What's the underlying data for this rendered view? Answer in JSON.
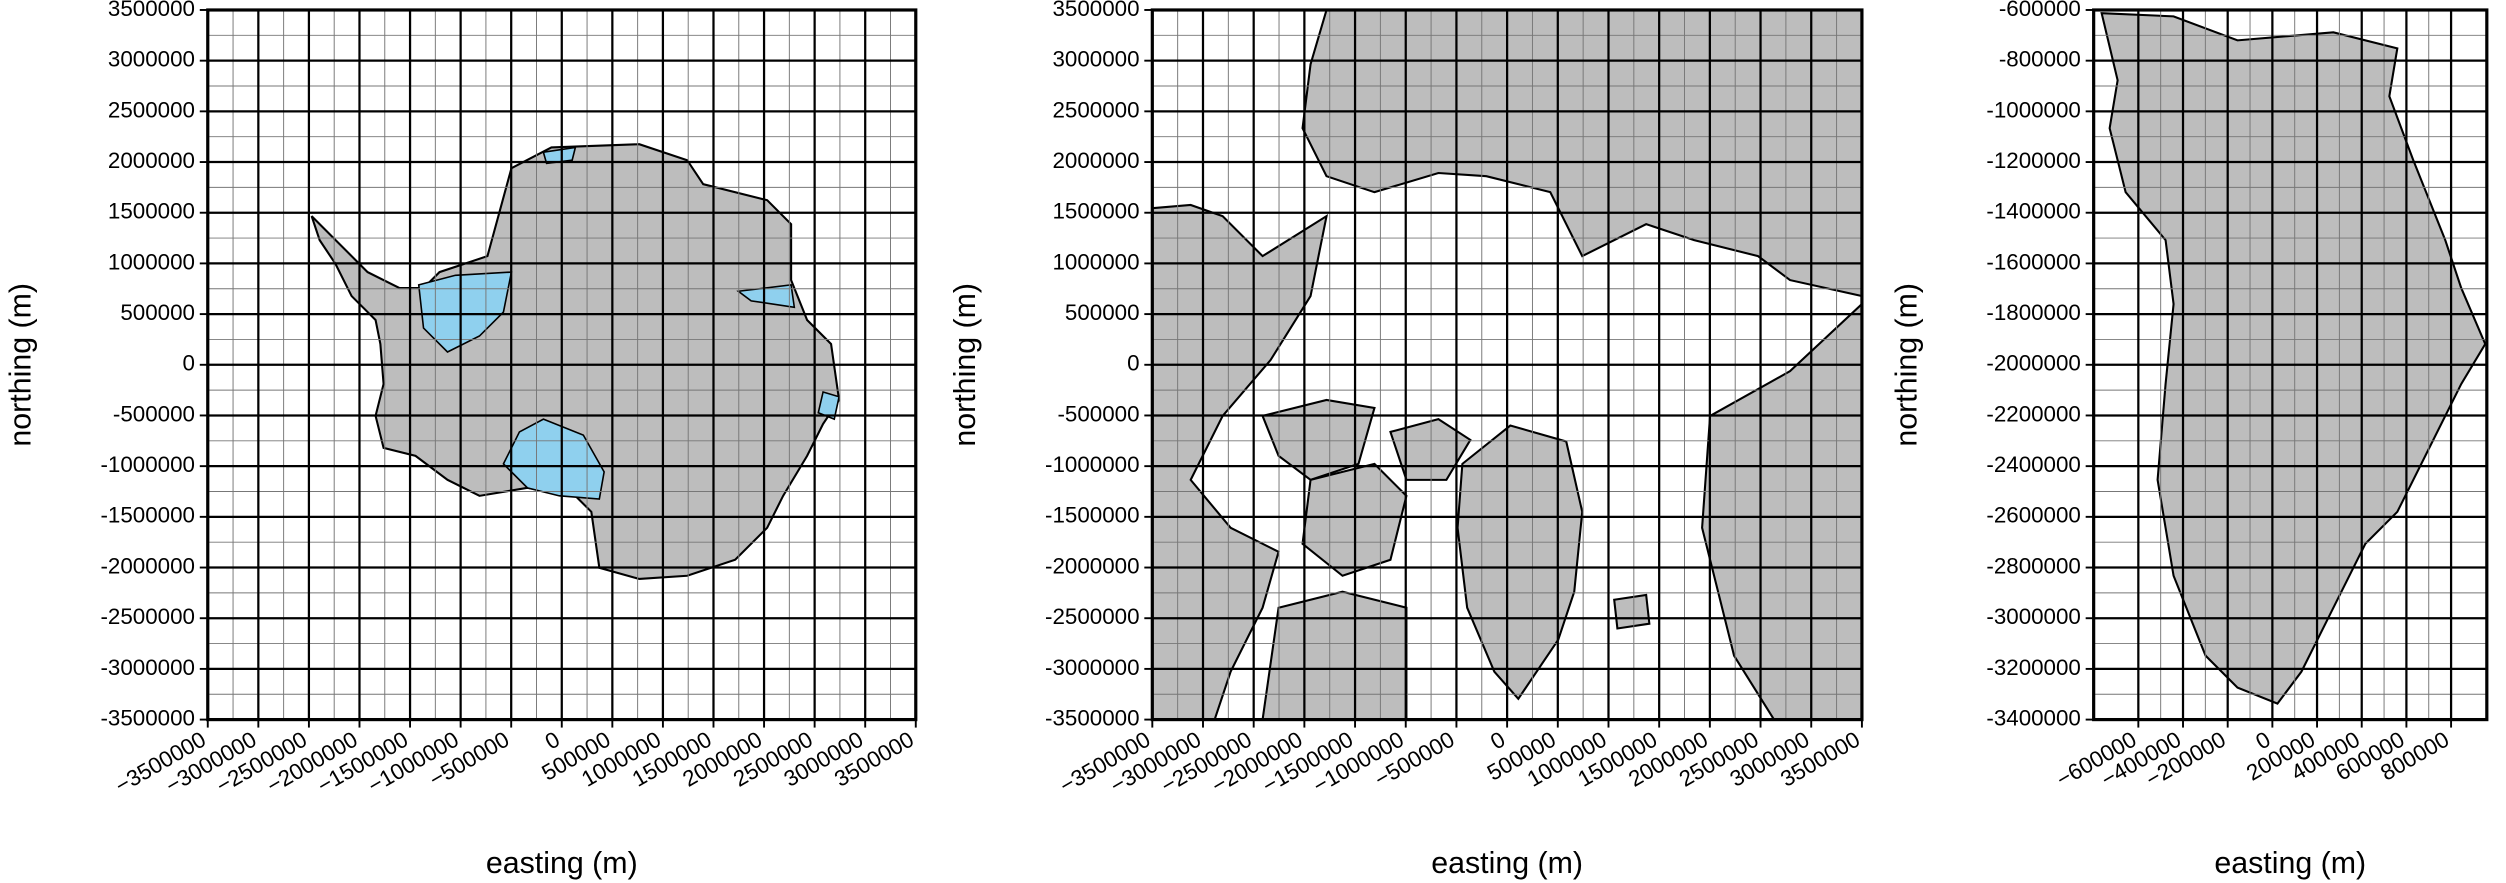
{
  "chart_data": [
    {
      "type": "map",
      "xlabel": "easting (m)",
      "ylabel": "northing (m)",
      "grid": true,
      "xlim": [
        -3500000,
        3500000
      ],
      "ylim": [
        -3500000,
        3500000
      ],
      "xticks": [
        {
          "value": -3500000,
          "label": "−3500000"
        },
        {
          "value": -3000000,
          "label": "−3000000"
        },
        {
          "value": -2500000,
          "label": "−2500000"
        },
        {
          "value": -2000000,
          "label": "−2000000"
        },
        {
          "value": -1500000,
          "label": "−1500000"
        },
        {
          "value": -1000000,
          "label": "−1000000"
        },
        {
          "value": -500000,
          "label": "−500000"
        },
        0,
        500000,
        1000000,
        1500000,
        2000000,
        2500000,
        3000000,
        3500000
      ],
      "yticks": [
        -3500000,
        -3000000,
        -2500000,
        -2000000,
        -1500000,
        -1000000,
        -500000,
        0,
        500000,
        1000000,
        1500000,
        2000000,
        2500000,
        3000000,
        3500000
      ]
    },
    {
      "type": "map",
      "xlabel": "easting (m)",
      "ylabel": "northing (m)",
      "grid": true,
      "xlim": [
        -3500000,
        3500000
      ],
      "ylim": [
        -3500000,
        3500000
      ],
      "xticks": [
        {
          "value": -3500000,
          "label": "−3500000"
        },
        {
          "value": -3000000,
          "label": "−3000000"
        },
        {
          "value": -2500000,
          "label": "−2500000"
        },
        {
          "value": -2000000,
          "label": "−2000000"
        },
        {
          "value": -1500000,
          "label": "−1500000"
        },
        {
          "value": -1000000,
          "label": "−1000000"
        },
        {
          "value": -500000,
          "label": "−500000"
        },
        0,
        500000,
        1000000,
        1500000,
        2000000,
        2500000,
        3000000,
        3500000
      ],
      "yticks": [
        -3500000,
        -3000000,
        -2500000,
        -2000000,
        -1500000,
        -1000000,
        -500000,
        0,
        500000,
        1000000,
        1500000,
        2000000,
        2500000,
        3000000,
        3500000
      ]
    },
    {
      "type": "map",
      "xlabel": "easting (m)",
      "ylabel": "northing (m)",
      "grid": true,
      "xlim": [
        -800000,
        960000
      ],
      "ylim": [
        -3400000,
        -600000
      ],
      "xticks": [
        {
          "value": -600000,
          "label": "−600000"
        },
        {
          "value": -400000,
          "label": "−400000"
        },
        {
          "value": -200000,
          "label": "−200000"
        },
        0,
        200000,
        400000,
        600000,
        800000
      ],
      "yticks": [
        -3400000,
        -3200000,
        -3000000,
        -2800000,
        -2600000,
        -2400000,
        -2200000,
        -2000000,
        -1800000,
        -1600000,
        -1400000,
        -1200000,
        -1000000,
        -800000,
        -600000
      ]
    }
  ]
}
